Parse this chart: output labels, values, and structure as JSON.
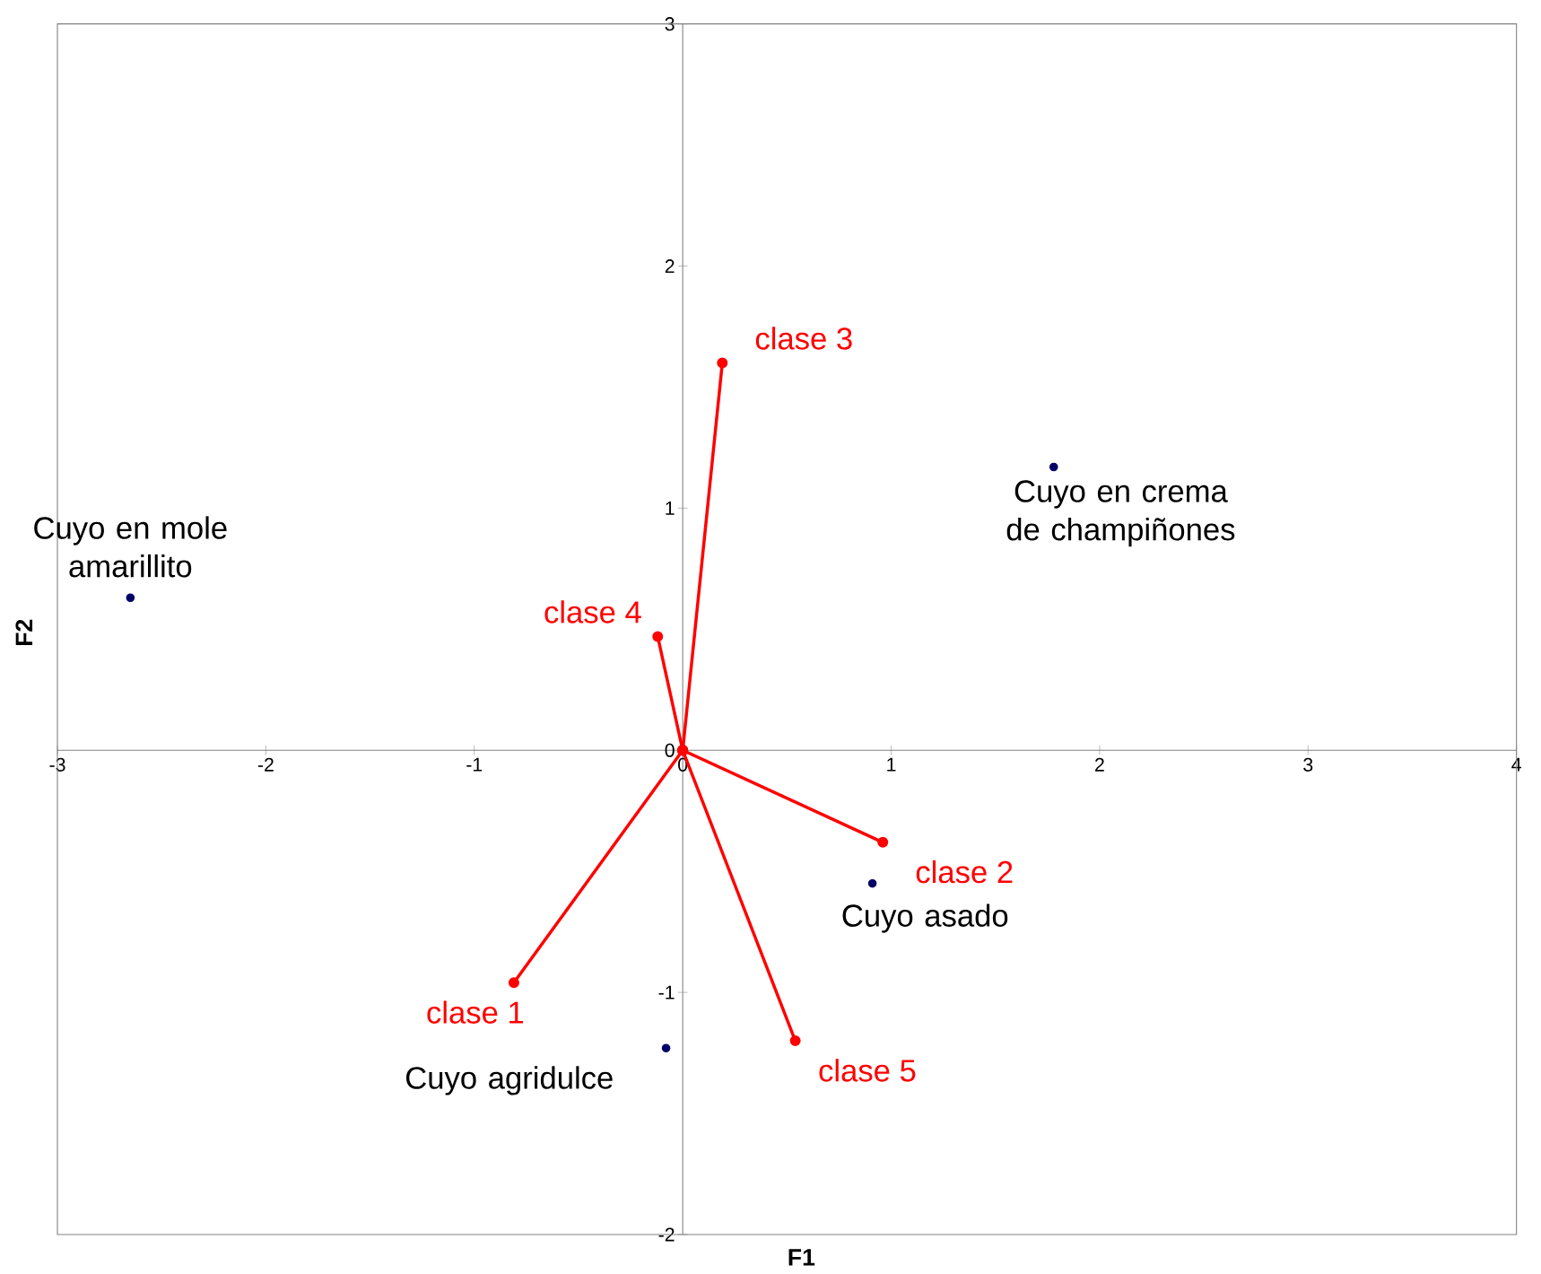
{
  "chart_data": {
    "type": "scatter",
    "xlabel": "F1",
    "ylabel": "F2",
    "xlim": [
      -3,
      4
    ],
    "ylim": [
      -2,
      3
    ],
    "xticks": [
      -3,
      -2,
      -1,
      0,
      1,
      2,
      3,
      4
    ],
    "yticks": [
      -2,
      -1,
      0,
      1,
      2,
      3
    ],
    "marker": "circle",
    "line_style": "solid",
    "series": [
      {
        "color": "#000066",
        "x": [
          -2.65,
          1.78,
          0.91,
          -0.08
        ],
        "values": [
          0.63,
          1.17,
          -0.55,
          -1.23
        ]
      },
      {
        "type": "line",
        "name": "clase 1",
        "color": "#ff0000",
        "x": [
          0,
          -0.81
        ],
        "values": [
          0,
          -0.96
        ]
      },
      {
        "type": "line",
        "name": "clase 2",
        "color": "#ff0000",
        "x": [
          0,
          0.96
        ],
        "values": [
          0,
          -0.38
        ]
      },
      {
        "type": "line",
        "name": "clase 3",
        "color": "#ff0000",
        "x": [
          0,
          0.19
        ],
        "values": [
          0,
          1.6
        ]
      },
      {
        "type": "line",
        "name": "clase 4",
        "color": "#ff0000",
        "x": [
          0,
          -0.12
        ],
        "values": [
          0,
          0.47
        ]
      },
      {
        "type": "line",
        "name": "clase 5",
        "color": "#ff0000",
        "x": [
          0,
          0.54
        ],
        "values": [
          0,
          -1.2
        ]
      }
    ],
    "annotations": [
      {
        "text": "Cuyo en mole amarillito",
        "x": -2.65,
        "y": 0.63
      },
      {
        "text": "Cuyo en crema de champiñones",
        "x": 1.78,
        "y": 1.17
      },
      {
        "text": "Cuyo asado",
        "x": 0.91,
        "y": -0.55
      },
      {
        "text": "Cuyo agridulce",
        "x": -0.08,
        "y": -1.23
      }
    ]
  }
}
